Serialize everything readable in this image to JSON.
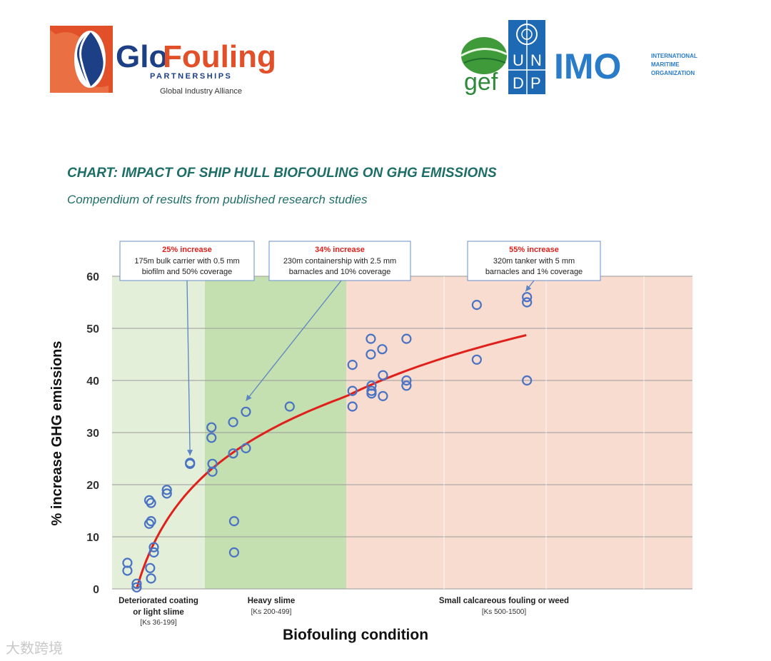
{
  "header": {
    "glofouling": {
      "name_part1": "Glo",
      "name_part2": "Fouling",
      "partnerships": "PARTNERSHIPS",
      "alliance": "Global Industry Alliance"
    },
    "partners": {
      "gef": "gef",
      "undp_letters": [
        "U",
        "N",
        "D",
        "P"
      ],
      "imo": "IMO",
      "imo_full": [
        "INTERNATIONAL",
        "MARITIME",
        "ORGANIZATION"
      ]
    }
  },
  "colors": {
    "title": "#1e6e68",
    "zone1": "#e3efd9",
    "zone2": "#c4e0b0",
    "zone3": "#f8dcd0",
    "points": "#4a73c4",
    "curve": "#e0201a",
    "callout_title": "#e0201a",
    "callout_border": "#6a8fc8"
  },
  "watermark": "大数跨境",
  "chart_data": {
    "type": "scatter",
    "title": "CHART: IMPACT OF SHIP HULL BIOFOULING ON GHG EMISSIONS",
    "subtitle": "Compendium of results from published research studies",
    "xlabel": "Biofouling condition",
    "ylabel": "% increase GHG emissions",
    "ylim": [
      0,
      60
    ],
    "yticks": [
      0,
      10,
      20,
      30,
      40,
      50,
      60
    ],
    "xlim": [
      0,
      1500
    ],
    "grid": true,
    "zones": [
      {
        "label": "Deteriorated coating or light slime",
        "range": "[Ks 36-199]",
        "x": [
          0,
          200
        ]
      },
      {
        "label": "Heavy slime",
        "range": "[Ks 200-499]",
        "x": [
          200,
          500
        ]
      },
      {
        "label": "Small calcareous fouling or weed",
        "range": "[Ks 500-1500]",
        "x": [
          500,
          1500
        ]
      }
    ],
    "points": [
      [
        33,
        5
      ],
      [
        33,
        3.5
      ],
      [
        53,
        1
      ],
      [
        53,
        0.3
      ],
      [
        80,
        17
      ],
      [
        80,
        12.5
      ],
      [
        84,
        16.5
      ],
      [
        84,
        13
      ],
      [
        82,
        4
      ],
      [
        84,
        2
      ],
      [
        90,
        8
      ],
      [
        90,
        7
      ],
      [
        118,
        19
      ],
      [
        118,
        18.3
      ],
      [
        168,
        24
      ],
      [
        168,
        24.2
      ],
      [
        214,
        31
      ],
      [
        214,
        29
      ],
      [
        216,
        24
      ],
      [
        216,
        22.5
      ],
      [
        260,
        32
      ],
      [
        260,
        26
      ],
      [
        262,
        13
      ],
      [
        262,
        7
      ],
      [
        287,
        34
      ],
      [
        287,
        27
      ],
      [
        380,
        35
      ],
      [
        518,
        43
      ],
      [
        518,
        38
      ],
      [
        518,
        35
      ],
      [
        571,
        48
      ],
      [
        571,
        45
      ],
      [
        573,
        39
      ],
      [
        573,
        38
      ],
      [
        573,
        37.5
      ],
      [
        604,
        46
      ],
      [
        606,
        41
      ],
      [
        606,
        37
      ],
      [
        674,
        48
      ],
      [
        674,
        40
      ],
      [
        674,
        39
      ],
      [
        877,
        54.5
      ],
      [
        877,
        44
      ],
      [
        1022,
        56
      ],
      [
        1022,
        55
      ],
      [
        1022,
        40
      ]
    ],
    "trend": {
      "type": "logarithmic",
      "from": 53,
      "to": 1020,
      "y_start": 0,
      "y_end": 48.7
    },
    "callouts": [
      {
        "title": "25% increase",
        "lines": [
          "175m bulk carrier with 0.5 mm",
          "biofilm and 50% coverage"
        ],
        "target": [
          168,
          24.5
        ]
      },
      {
        "title": "34% increase",
        "lines": [
          "230m containership with 2.5 mm",
          "barnacles and 10% coverage"
        ],
        "target": [
          287,
          35
        ]
      },
      {
        "title": "55% increase",
        "lines": [
          "320m tanker with 5 mm",
          "barnacles and 1% coverage"
        ],
        "target": [
          1018,
          56
        ]
      }
    ]
  }
}
